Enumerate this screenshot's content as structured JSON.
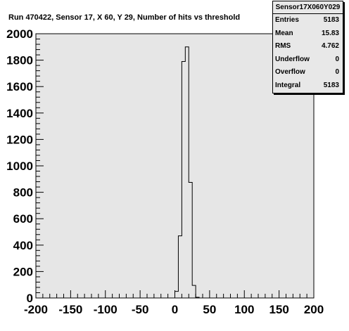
{
  "title": "Run 470422, Sensor 17, X 60, Y 29, Number of hits vs threshold",
  "stats": {
    "name": "Sensor17X060Y029",
    "rows": [
      {
        "label": "Entries",
        "value": "5183"
      },
      {
        "label": "Mean",
        "value": "15.83"
      },
      {
        "label": "RMS",
        "value": "4.762"
      },
      {
        "label": "Underflow",
        "value": "0"
      },
      {
        "label": "Overflow",
        "value": "0"
      },
      {
        "label": "Integral",
        "value": "5183"
      }
    ]
  },
  "colors": {
    "plot_bg": "#e6e6e6",
    "line": "#000000",
    "page_bg": "#ffffff"
  },
  "chart_data": {
    "type": "histogram",
    "title": "Run 470422, Sensor 17, X 60, Y 29, Number of hits vs threshold",
    "xlim": [
      -200,
      200
    ],
    "ylim": [
      0,
      2000
    ],
    "x_ticks": [
      -200,
      -150,
      -100,
      -50,
      0,
      50,
      100,
      150,
      200
    ],
    "y_ticks": [
      0,
      200,
      400,
      600,
      800,
      1000,
      1200,
      1400,
      1600,
      1800,
      2000
    ],
    "bin_width": 5,
    "bins": [
      {
        "x0": 0,
        "x1": 5,
        "value": 50
      },
      {
        "x0": 5,
        "x1": 10,
        "value": 470
      },
      {
        "x0": 10,
        "x1": 15,
        "value": 1790
      },
      {
        "x0": 15,
        "x1": 20,
        "value": 1900
      },
      {
        "x0": 20,
        "x1": 25,
        "value": 875
      },
      {
        "x0": 25,
        "x1": 30,
        "value": 95
      },
      {
        "x0": 30,
        "x1": 35,
        "value": 5
      }
    ]
  }
}
